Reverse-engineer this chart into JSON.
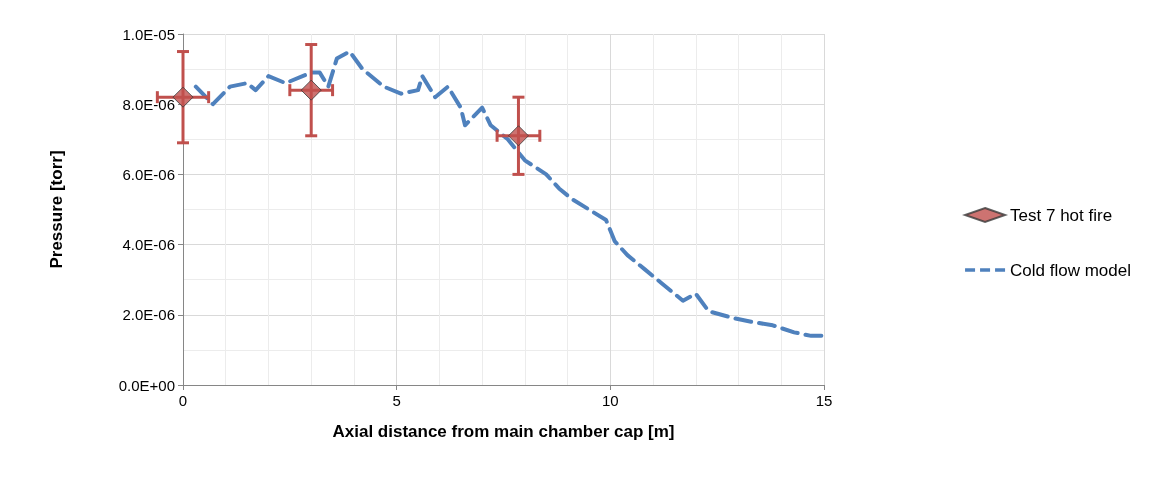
{
  "chart_data": {
    "type": "scatter",
    "xlabel": "Axial distance from main chamber cap [m]",
    "ylabel": "Pressure [torr]",
    "xlim": [
      0,
      15
    ],
    "xticks": [
      0,
      5,
      10,
      15
    ],
    "ylim": [
      0,
      1e-05
    ],
    "yticks": [
      {
        "value": 0,
        "label": "0.0E+00"
      },
      {
        "value": 2e-06,
        "label": "2.0E-06"
      },
      {
        "value": 4e-06,
        "label": "4.0E-06"
      },
      {
        "value": 6e-06,
        "label": "6.0E-06"
      },
      {
        "value": 8e-06,
        "label": "8.0E-06"
      },
      {
        "value": 1e-05,
        "label": "1.0E-05"
      }
    ],
    "grid": true,
    "legend": "right",
    "series": [
      {
        "name": "Test 7 hot fire",
        "color": "#c0504d",
        "marker": "diamond",
        "x": [
          0,
          3,
          7.85
        ],
        "values": [
          8.2e-06,
          8.4e-06,
          7.1e-06
        ],
        "errors": [
          [
            6.9e-06,
            9.5e-06
          ],
          [
            7.1e-06,
            9.7e-06
          ],
          [
            6e-06,
            8.2e-06
          ]
        ],
        "xerrors": [
          0.6,
          0.5,
          0.5
        ]
      },
      {
        "name": "Cold flow model",
        "type": "line",
        "color": "#4f81bd",
        "marker": "none",
        "line_style": "dashed",
        "x": [
          0.3,
          0.7,
          1.1,
          1.5,
          1.7,
          2,
          2.4,
          3,
          3.2,
          3.4,
          3.6,
          3.9,
          4.2,
          4.7,
          5.1,
          5.5,
          5.6,
          5.9,
          6.2,
          6.5,
          6.6,
          7,
          7.2,
          7.6,
          8,
          8.5,
          8.8,
          9.1,
          9.5,
          9.9,
          10.1,
          10.4,
          10.8,
          11.2,
          11.7,
          12,
          12.3,
          12.9,
          13.3,
          13.8,
          14.3,
          14.7,
          15
        ],
        "values": [
          8.5e-06,
          8e-06,
          8.5e-06,
          8.6e-06,
          8.4e-06,
          8.8e-06,
          8.6e-06,
          8.9e-06,
          8.9e-06,
          8.5e-06,
          9.3e-06,
          9.5e-06,
          9e-06,
          8.5e-06,
          8.3e-06,
          8.4e-06,
          8.8e-06,
          8.2e-06,
          8.5e-06,
          7.9e-06,
          7.4e-06,
          7.9e-06,
          7.4e-06,
          7e-06,
          6.4e-06,
          6e-06,
          5.6e-06,
          5.3e-06,
          5e-06,
          4.7e-06,
          4.1e-06,
          3.7e-06,
          3.3e-06,
          2.9e-06,
          2.4e-06,
          2.6e-06,
          2.1e-06,
          1.9e-06,
          1.8e-06,
          1.7e-06,
          1.5e-06,
          1.4e-06,
          1.4e-06
        ]
      }
    ]
  }
}
